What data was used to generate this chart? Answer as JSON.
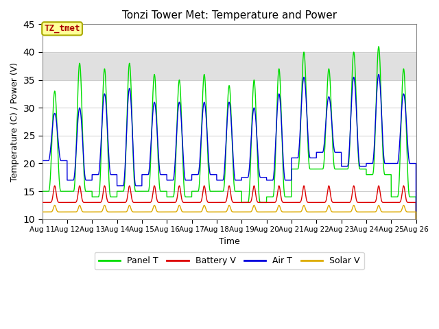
{
  "title": "Tonzi Tower Met: Temperature and Power",
  "xlabel": "Time",
  "ylabel": "Temperature (C) / Power (V)",
  "ylim": [
    10,
    45
  ],
  "yticks": [
    10,
    15,
    20,
    25,
    30,
    35,
    40,
    45
  ],
  "start_day": 11,
  "n_days": 15,
  "bg_band": [
    35,
    40
  ],
  "bg_color": "#e0e0e0",
  "plot_bg": "#ffffff",
  "panel_color": "#00dd00",
  "battery_color": "#dd0000",
  "air_color": "#0000dd",
  "solar_color": "#ddaa00",
  "legend_label_panel": "Panel T",
  "legend_label_battery": "Battery V",
  "legend_label_air": "Air T",
  "legend_label_solar": "Solar V",
  "tag_text": "TZ_tmet",
  "tag_facecolor": "#ffff99",
  "tag_edgecolor": "#aaaa00",
  "tag_textcolor": "#aa0000",
  "panel_peaks": [
    33,
    38,
    37,
    38,
    36,
    35,
    36,
    34,
    35,
    37,
    40,
    37,
    40,
    41,
    37
  ],
  "panel_mins": [
    15,
    15,
    14,
    15,
    15,
    14,
    15,
    15,
    13,
    14,
    19,
    19,
    19,
    18,
    14
  ],
  "air_peaks": [
    29,
    30,
    32.5,
    33.5,
    31,
    31,
    31,
    31,
    30,
    32.5,
    35.5,
    32,
    35.5,
    36,
    32.5
  ],
  "air_mins": [
    20.5,
    17,
    18,
    16,
    18,
    17,
    18,
    17,
    17.5,
    17,
    21,
    22,
    19.5,
    20,
    20
  ],
  "bat_base": 13.0,
  "bat_peak": 16.0,
  "solar_base": 11.3,
  "solar_peak": 12.5,
  "linewidth": 1.0
}
